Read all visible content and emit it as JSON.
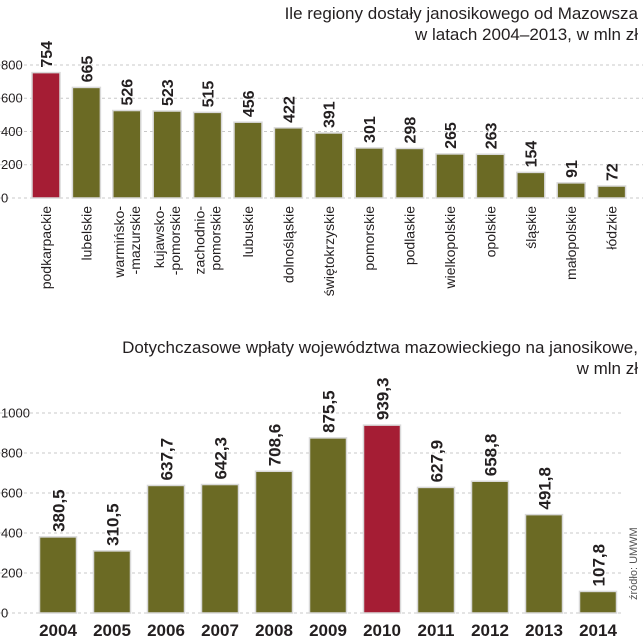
{
  "chart_data": [
    {
      "type": "bar",
      "title": "Ile regiony dostały janosikowego od Mazowsza w latach 2004–2013, w mln zł",
      "title_lines": [
        "Ile regiony dostały janosikowego od Mazowsza",
        "w latach 2004–2013, w mln zł"
      ],
      "categories": [
        "podkarpackie",
        "lubelskie",
        "warmińsko--mazurskie",
        "kujawsko--pomorskie",
        "zachodnio-pomorskie",
        "lubuskie",
        "dolnośląskie",
        "świętokrzyskie",
        "pomorskie",
        "podlaskie",
        "wielkopolskie",
        "opolskie",
        "śląskie",
        "małopolskie",
        "łódzkie"
      ],
      "category_lines": [
        [
          "podkarpackie"
        ],
        [
          "lubelskie"
        ],
        [
          "warmińsko-",
          "-mazurskie"
        ],
        [
          "kujawsko-",
          "-pomorskie"
        ],
        [
          "zachodnio-",
          "pomorskie"
        ],
        [
          "lubuskie"
        ],
        [
          "dolnośląskie"
        ],
        [
          "świętokrzyskie"
        ],
        [
          "pomorskie"
        ],
        [
          "podlaskie"
        ],
        [
          "wielkopolskie"
        ],
        [
          "opolskie"
        ],
        [
          "śląskie"
        ],
        [
          "małopolskie"
        ],
        [
          "łódzkie"
        ]
      ],
      "values": [
        754,
        665,
        526,
        523,
        515,
        456,
        422,
        391,
        301,
        298,
        265,
        263,
        154,
        91,
        72
      ],
      "value_labels": [
        "754",
        "665",
        "526",
        "523",
        "515",
        "456",
        "422",
        "391",
        "301",
        "298",
        "265",
        "263",
        "154",
        "91",
        "72"
      ],
      "highlight_index": 0,
      "yticks": [
        0,
        200,
        400,
        600,
        800
      ],
      "ytick_labels": [
        "0",
        "200",
        "400",
        "600",
        "800"
      ],
      "ylim": [
        0,
        860
      ],
      "xlabel": "",
      "ylabel": "",
      "grid": true,
      "legend": "none"
    },
    {
      "type": "bar",
      "title": "Dotychczasowe wpłaty województwa mazowieckiego na janosikowe, w mln zł",
      "title_lines": [
        "Dotychczasowe wpłaty województwa mazowieckiego na janosikowe,",
        "w mln zł"
      ],
      "categories": [
        "2004",
        "2005",
        "2006",
        "2007",
        "2008",
        "2009",
        "2010",
        "2011",
        "2012",
        "2013",
        "2014"
      ],
      "values": [
        380.5,
        310.5,
        637.7,
        642.3,
        708.6,
        875.5,
        939.3,
        627.9,
        658.8,
        491.8,
        107.8
      ],
      "value_labels": [
        "380,5",
        "310,5",
        "637,7",
        "642,3",
        "708,6",
        "875,5",
        "939,3",
        "627,9",
        "658,8",
        "491,8",
        "107,8"
      ],
      "highlight_index": 6,
      "yticks": [
        0,
        200,
        400,
        600,
        800,
        1000
      ],
      "ytick_labels": [
        "0",
        "200",
        "400",
        "600",
        "800",
        "1000"
      ],
      "ylim": [
        0,
        1020
      ],
      "xlabel": "",
      "ylabel": "",
      "grid": true,
      "legend": "none"
    }
  ],
  "source": "źródło: UMWM",
  "colors": {
    "bar": "#6b6a24",
    "highlight": "#a51d34",
    "text": "#231f20",
    "grid": "#c8c8c8",
    "bar_outline": "#d9d9d9"
  }
}
